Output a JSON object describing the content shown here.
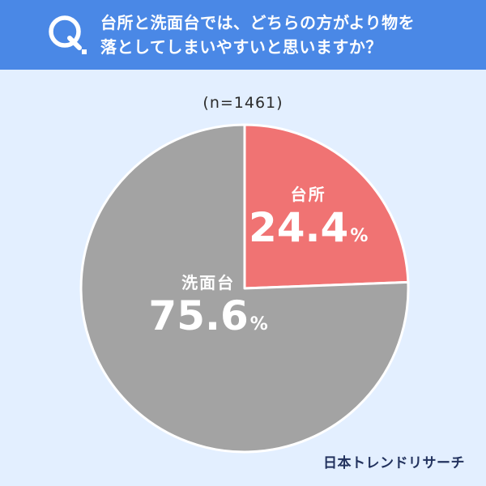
{
  "question": {
    "mark": "Q",
    "line1": "台所と洗面台では、どちらの方がより物を",
    "line2": "落としてしまいやすいと思いますか？"
  },
  "sample_size": "(n=1461)",
  "brand": "日本トレンドリサーチ",
  "colors": {
    "background": "#e3efff",
    "header": "#4a88e6",
    "kitchen": "#f07373",
    "washbasin": "#a3a3a3",
    "separator": "#ffffff"
  },
  "chart_data": {
    "type": "pie",
    "title": "台所と洗面台では、どちらの方がより物を落としてしまいやすいと思いますか？",
    "n": 1461,
    "unit": "%",
    "start": "12 o'clock",
    "direction": "clockwise",
    "slices": [
      {
        "label": "台所",
        "value": 24.4,
        "value_text": "24.4",
        "color": "#f07373"
      },
      {
        "label": "洗面台",
        "value": 75.6,
        "value_text": "75.6",
        "color": "#a3a3a3"
      }
    ]
  }
}
